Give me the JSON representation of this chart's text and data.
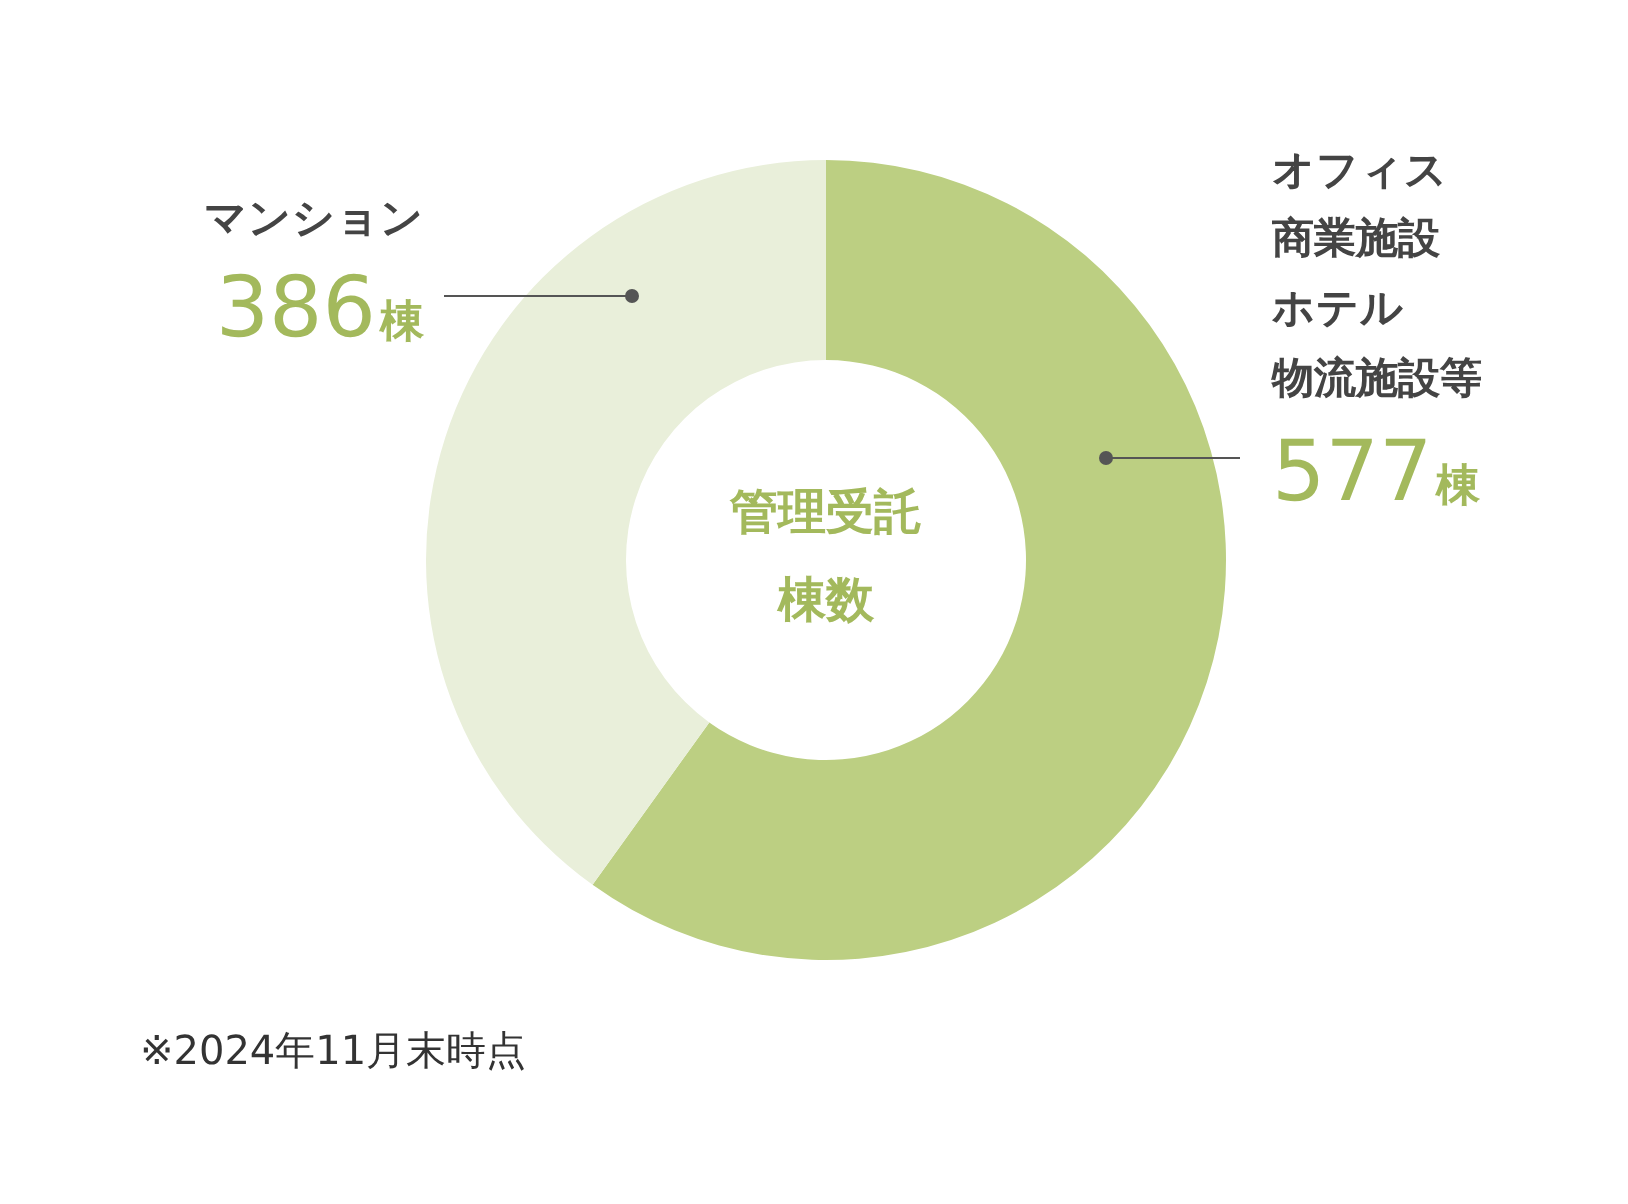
{
  "chart_data": {
    "type": "donut",
    "title": "管理受託棟数",
    "categories": [
      "オフィス商業施設ホテル物流施設等",
      "マンション"
    ],
    "values": [
      577,
      386
    ],
    "colors": [
      "#bccf82",
      "#e9efda"
    ],
    "value_labels": [
      "577棟",
      "386棟"
    ],
    "annotations": [
      "※2024年11月末時点"
    ],
    "legend": false
  }
}
